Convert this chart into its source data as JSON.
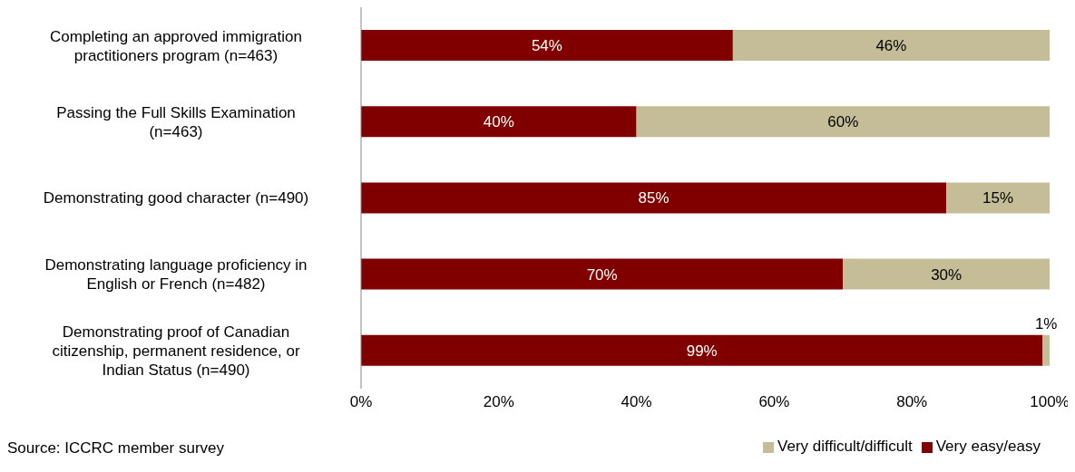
{
  "chart_data": {
    "type": "bar",
    "orientation": "horizontal",
    "stacked": true,
    "categories": [
      "Completing an approved immigration\npractitioners program (n=463)",
      "Passing the Full Skills Examination\n(n=463)",
      "Demonstrating good character (n=490)",
      "Demonstrating language proficiency in\nEnglish or French (n=482)",
      "Demonstrating proof of Canadian\ncitizenship, permanent residence, or\nIndian Status (n=490)"
    ],
    "series": [
      {
        "name": "Very easy/easy",
        "color": "#800000",
        "values": [
          54,
          40,
          85,
          70,
          99
        ],
        "value_labels": [
          "54%",
          "40%",
          "85%",
          "70%",
          "99%"
        ]
      },
      {
        "name": "Very difficult/difficult",
        "color": "#c4bd97",
        "values": [
          46,
          60,
          15,
          30,
          1
        ],
        "value_labels": [
          "46%",
          "60%",
          "15%",
          "30%",
          "1%"
        ]
      }
    ],
    "xlim": [
      0,
      100
    ],
    "xticks": [
      {
        "value": 0,
        "label": "0%"
      },
      {
        "value": 20,
        "label": "20%"
      },
      {
        "value": 40,
        "label": "40%"
      },
      {
        "value": 60,
        "label": "60%"
      },
      {
        "value": 80,
        "label": "80%"
      },
      {
        "value": 100,
        "label": "100%"
      }
    ],
    "grid": false,
    "legend": "bottom right",
    "annotations": [
      "Source: ICCRC member survey"
    ]
  }
}
